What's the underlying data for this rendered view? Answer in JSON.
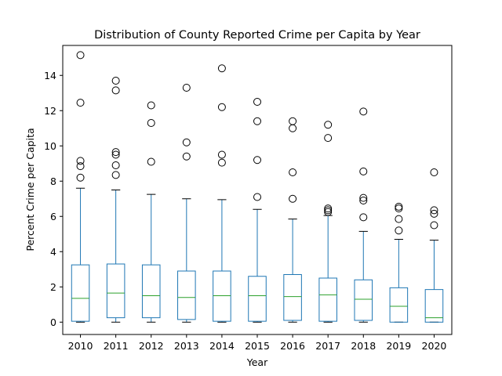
{
  "chart_data": {
    "type": "boxplot",
    "title": "Distribution of County Reported Crime per Capita by Year",
    "xlabel": "Year",
    "ylabel": "Percent Crime per Capita",
    "ylim": [
      -0.7,
      15.7
    ],
    "yticks": [
      0,
      2,
      4,
      6,
      8,
      10,
      12,
      14
    ],
    "grid": false,
    "colors": {
      "box": "#1f77b4",
      "median": "#2ca02c",
      "whisker": "#1f77b4",
      "cap": "#000000",
      "flier": "#000000"
    },
    "boxes": [
      {
        "label": "2010",
        "whisker_low": 0.0,
        "q1": 0.05,
        "median": 1.35,
        "q3": 3.25,
        "whisker_high": 7.6,
        "fliers": [
          8.2,
          8.85,
          9.15,
          12.45,
          15.15
        ]
      },
      {
        "label": "2011",
        "whisker_low": 0.0,
        "q1": 0.25,
        "median": 1.65,
        "q3": 3.3,
        "whisker_high": 7.5,
        "fliers": [
          8.35,
          8.9,
          9.5,
          9.65,
          13.15,
          13.7
        ]
      },
      {
        "label": "2012",
        "whisker_low": 0.0,
        "q1": 0.25,
        "median": 1.5,
        "q3": 3.25,
        "whisker_high": 7.25,
        "fliers": [
          9.1,
          11.3,
          12.3
        ]
      },
      {
        "label": "2013",
        "whisker_low": 0.0,
        "q1": 0.15,
        "median": 1.4,
        "q3": 2.9,
        "whisker_high": 7.0,
        "fliers": [
          9.4,
          10.2,
          13.3
        ]
      },
      {
        "label": "2014",
        "whisker_low": 0.0,
        "q1": 0.05,
        "median": 1.5,
        "q3": 2.9,
        "whisker_high": 6.95,
        "fliers": [
          9.05,
          9.5,
          12.2,
          14.4
        ]
      },
      {
        "label": "2015",
        "whisker_low": 0.0,
        "q1": 0.05,
        "median": 1.5,
        "q3": 2.6,
        "whisker_high": 6.4,
        "fliers": [
          7.1,
          9.2,
          11.4,
          12.5
        ]
      },
      {
        "label": "2016",
        "whisker_low": 0.0,
        "q1": 0.1,
        "median": 1.45,
        "q3": 2.7,
        "whisker_high": 5.85,
        "fliers": [
          7.0,
          8.5,
          11.0,
          11.4
        ]
      },
      {
        "label": "2017",
        "whisker_low": 0.0,
        "q1": 0.05,
        "median": 1.55,
        "q3": 2.5,
        "whisker_high": 6.05,
        "fliers": [
          6.25,
          6.35,
          6.45,
          10.45,
          11.2
        ]
      },
      {
        "label": "2018",
        "whisker_low": 0.0,
        "q1": 0.1,
        "median": 1.3,
        "q3": 2.4,
        "whisker_high": 5.15,
        "fliers": [
          5.95,
          6.9,
          7.05,
          8.55,
          11.95
        ]
      },
      {
        "label": "2019",
        "whisker_low": 0.0,
        "q1": 0.0,
        "median": 0.9,
        "q3": 1.95,
        "whisker_high": 4.7,
        "fliers": [
          5.2,
          5.85,
          6.45,
          6.55
        ]
      },
      {
        "label": "2020",
        "whisker_low": 0.0,
        "q1": 0.0,
        "median": 0.25,
        "q3": 1.85,
        "whisker_high": 4.65,
        "fliers": [
          5.5,
          6.15,
          6.35,
          8.5
        ]
      }
    ]
  }
}
